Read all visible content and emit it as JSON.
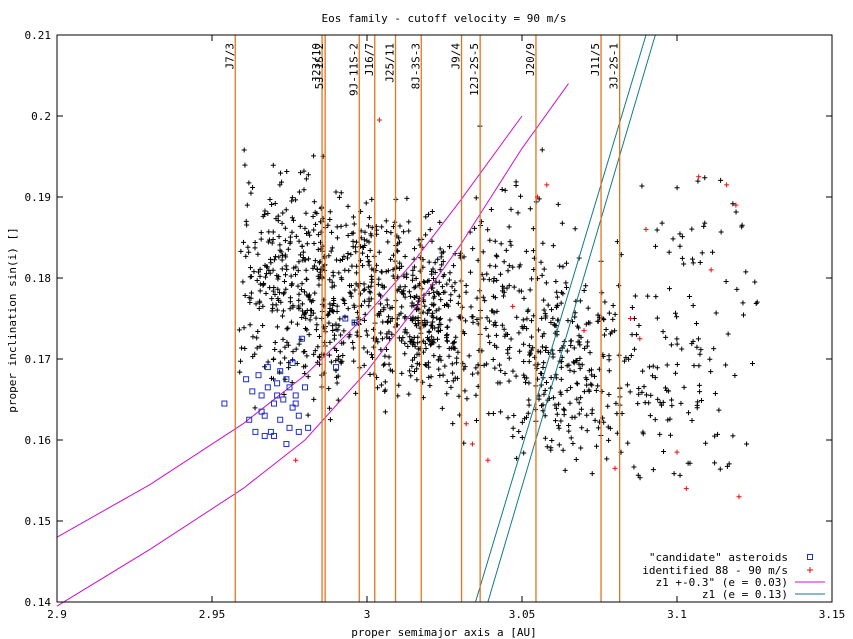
{
  "chart_data": {
    "type": "scatter",
    "title": "Eos family - cutoff velocity = 90 m/s",
    "xlabel": "proper semimajor axis a [AU]",
    "ylabel": "proper inclination sin(i) []",
    "xlim": [
      2.9,
      3.15
    ],
    "ylim": [
      0.14,
      0.21
    ],
    "x_ticks": [
      "2.9",
      "2.95",
      "3",
      "3.05",
      "3.1",
      "3.15"
    ],
    "y_ticks": [
      "0.14",
      "0.15",
      "0.16",
      "0.17",
      "0.18",
      "0.19",
      "0.2",
      "0.21"
    ],
    "grid": false,
    "legend_position": "bottom-right",
    "resonances": [
      {
        "label": "J7/3",
        "a": 2.9575
      },
      {
        "label": "J23/10",
        "a": 2.9855
      },
      {
        "label": "5J-1S-2",
        "a": 2.9865
      },
      {
        "label": "9J-11S-2",
        "a": 2.9975
      },
      {
        "label": "J16/7",
        "a": 3.0025
      },
      {
        "label": "J25/11",
        "a": 3.0092
      },
      {
        "label": "8J-3S-3",
        "a": 3.0175
      },
      {
        "label": "J9/4",
        "a": 3.0305
      },
      {
        "label": "12J-2S-5",
        "a": 3.0365
      },
      {
        "label": "J20/9",
        "a": 3.0545
      },
      {
        "label": "J11/5",
        "a": 3.0755
      },
      {
        "label": "3J-2S-1",
        "a": 3.0815
      }
    ],
    "resonance_color": "#e2751f",
    "series": [
      {
        "name": "\"candidate\" asteroids",
        "marker": "square",
        "color": "#1f2fcc",
        "points": [
          [
            2.954,
            0.1645
          ],
          [
            2.961,
            0.1675
          ],
          [
            2.963,
            0.166
          ],
          [
            2.965,
            0.168
          ],
          [
            2.966,
            0.1655
          ],
          [
            2.967,
            0.163
          ],
          [
            2.968,
            0.1665
          ],
          [
            2.969,
            0.161
          ],
          [
            2.97,
            0.1645
          ],
          [
            2.971,
            0.167
          ],
          [
            2.972,
            0.1625
          ],
          [
            2.973,
            0.165
          ],
          [
            2.974,
            0.1675
          ],
          [
            2.975,
            0.1615
          ],
          [
            2.976,
            0.164
          ],
          [
            2.977,
            0.1655
          ],
          [
            2.978,
            0.163
          ],
          [
            2.979,
            0.1725
          ],
          [
            2.98,
            0.1665
          ],
          [
            2.981,
            0.1615
          ],
          [
            2.962,
            0.1625
          ],
          [
            2.964,
            0.161
          ],
          [
            2.966,
            0.1635
          ],
          [
            2.968,
            0.169
          ],
          [
            2.97,
            0.1605
          ],
          [
            2.972,
            0.1685
          ],
          [
            2.974,
            0.1595
          ],
          [
            2.976,
            0.1695
          ],
          [
            2.978,
            0.161
          ],
          [
            2.99,
            0.169
          ],
          [
            2.993,
            0.175
          ],
          [
            2.996,
            0.1745
          ],
          [
            2.967,
            0.1605
          ],
          [
            2.971,
            0.1655
          ],
          [
            2.975,
            0.1665
          ],
          [
            2.977,
            0.1645
          ]
        ]
      },
      {
        "name": "identified 88 - 90 m/s",
        "marker": "plus",
        "color": "#dd1111",
        "points": [
          [
            2.977,
            0.1575
          ],
          [
            3.004,
            0.1995
          ],
          [
            3.032,
            0.162
          ],
          [
            3.034,
            0.1595
          ],
          [
            3.039,
            0.1575
          ],
          [
            3.047,
            0.1765
          ],
          [
            3.055,
            0.19
          ],
          [
            3.058,
            0.1915
          ],
          [
            3.07,
            0.1735
          ],
          [
            3.085,
            0.175
          ],
          [
            3.088,
            0.1725
          ],
          [
            3.09,
            0.186
          ],
          [
            3.1,
            0.1585
          ],
          [
            3.103,
            0.154
          ],
          [
            3.107,
            0.1925
          ],
          [
            3.111,
            0.181
          ],
          [
            3.116,
            0.1915
          ],
          [
            3.119,
            0.189
          ],
          [
            3.12,
            0.153
          ],
          [
            3.08,
            0.1565
          ]
        ]
      },
      {
        "name": "z1 +-0.3\" (e = 0.03)",
        "line": true,
        "color": "#cc11cc"
      },
      {
        "name": "z1 (e = 0.13)",
        "line": true,
        "color": "#107a8a"
      }
    ],
    "background_points_color": "#000000"
  }
}
